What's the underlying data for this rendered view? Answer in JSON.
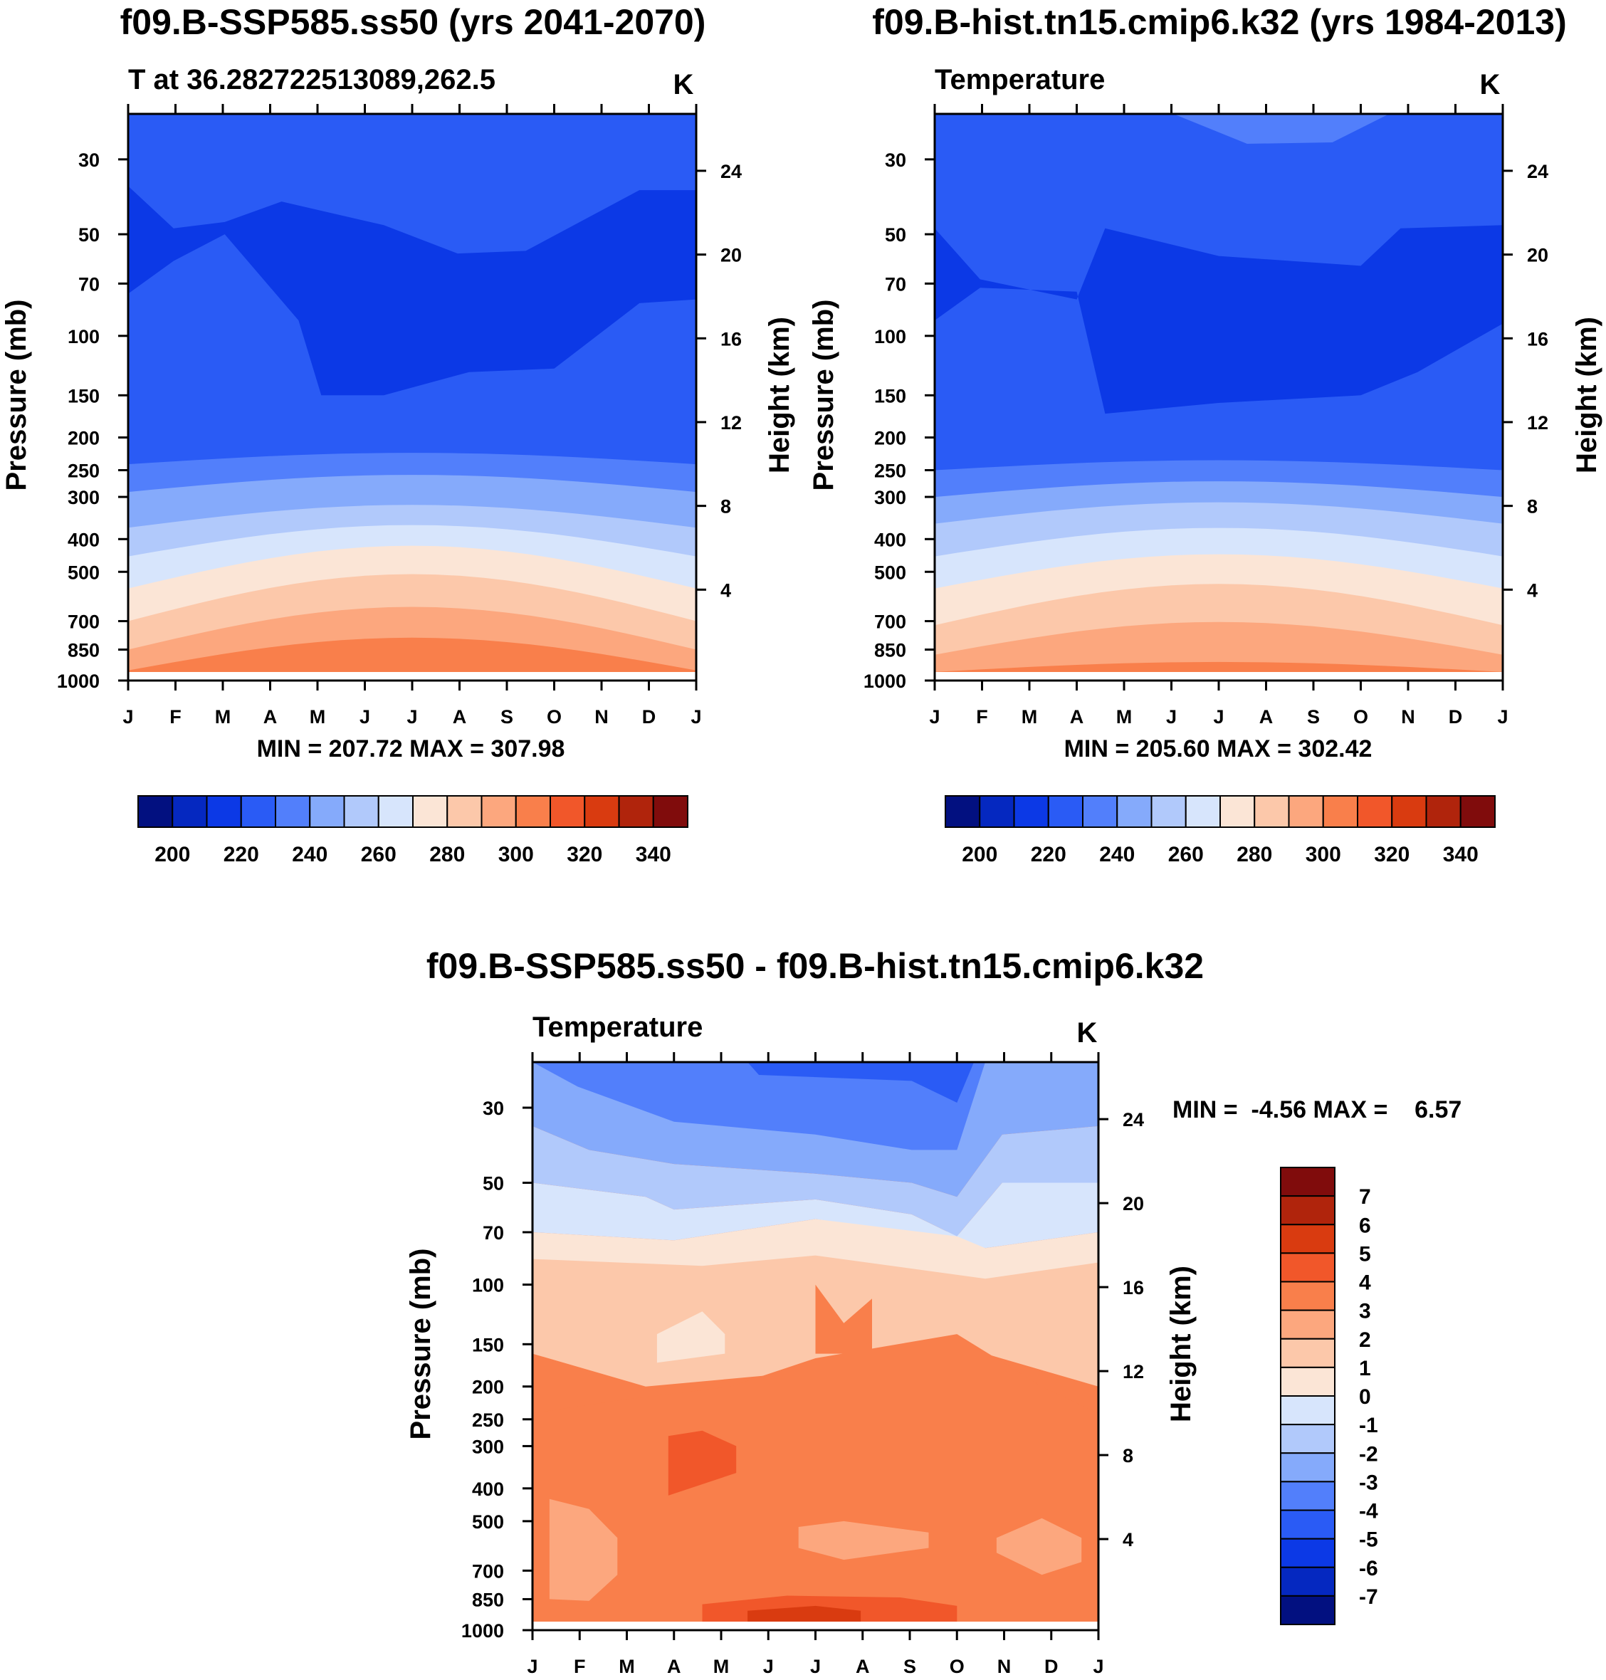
{
  "chart_data": [
    {
      "type": "contour",
      "title": "f09.B-SSP585.ss50 (yrs 2041-2070)",
      "subtitle": "T at 36.282722513089,262.5",
      "units": "K",
      "ylabel": "Pressure (mb)",
      "ylabel_right": "Height (km)",
      "x_ticks": [
        "J",
        "F",
        "M",
        "A",
        "M",
        "J",
        "J",
        "A",
        "S",
        "O",
        "N",
        "D",
        "J"
      ],
      "y_ticks": [
        "30",
        "50",
        "70",
        "100",
        "150",
        "200",
        "250",
        "300",
        "400",
        "500",
        "700",
        "850",
        "1000"
      ],
      "y_ticks_right": [
        "24",
        "20",
        "16",
        "12",
        "8",
        "4"
      ],
      "min_max": "MIN = 207.72 MAX = 307.98",
      "colorbar_labels": [
        "200",
        "220",
        "240",
        "260",
        "280",
        "300",
        "320",
        "340"
      ],
      "colorbar_levels": [
        200,
        210,
        220,
        230,
        240,
        250,
        260,
        270,
        280,
        290,
        300,
        310,
        320,
        330,
        340
      ],
      "zones": [
        {
          "p": 30,
          "value": "210-220"
        },
        {
          "p": 70,
          "value": "200-210"
        },
        {
          "p": 200,
          "value": "210-220"
        },
        {
          "p": 300,
          "value": "220-230"
        },
        {
          "p": 500,
          "value": "250-260"
        },
        {
          "p": 850,
          "value": "280-300"
        },
        {
          "p": 1000,
          "value": "300-310"
        }
      ]
    },
    {
      "type": "contour",
      "title": "f09.B-hist.tn15.cmip6.k32 (yrs 1984-2013)",
      "subtitle": "Temperature",
      "units": "K",
      "ylabel": "Pressure (mb)",
      "ylabel_right": "Height (km)",
      "x_ticks": [
        "J",
        "F",
        "M",
        "A",
        "M",
        "J",
        "J",
        "A",
        "S",
        "O",
        "N",
        "D",
        "J"
      ],
      "y_ticks": [
        "30",
        "50",
        "70",
        "100",
        "150",
        "200",
        "250",
        "300",
        "400",
        "500",
        "700",
        "850",
        "1000"
      ],
      "y_ticks_right": [
        "24",
        "20",
        "16",
        "12",
        "8",
        "4"
      ],
      "min_max": "MIN = 205.60 MAX = 302.42",
      "colorbar_labels": [
        "200",
        "220",
        "240",
        "260",
        "280",
        "300",
        "320",
        "340"
      ],
      "colorbar_levels": [
        200,
        210,
        220,
        230,
        240,
        250,
        260,
        270,
        280,
        290,
        300,
        310,
        320,
        330,
        340
      ]
    },
    {
      "type": "contour",
      "title": "f09.B-SSP585.ss50 - f09.B-hist.tn15.cmip6.k32",
      "subtitle": "Temperature",
      "units": "K",
      "ylabel": "Pressure (mb)",
      "ylabel_right": "Height (km)",
      "x_ticks": [
        "J",
        "F",
        "M",
        "A",
        "M",
        "J",
        "J",
        "A",
        "S",
        "O",
        "N",
        "D",
        "J"
      ],
      "y_ticks": [
        "30",
        "50",
        "70",
        "100",
        "150",
        "200",
        "250",
        "300",
        "400",
        "500",
        "700",
        "850",
        "1000"
      ],
      "y_ticks_right": [
        "24",
        "20",
        "16",
        "12",
        "8",
        "4"
      ],
      "min_max": "MIN =  -4.56 MAX =    6.57",
      "colorbar_labels": [
        "7",
        "6",
        "5",
        "4",
        "3",
        "2",
        "1",
        "0",
        "-1",
        "-2",
        "-3",
        "-4",
        "-5",
        "-6",
        "-7"
      ],
      "colorbar_levels": [
        -7,
        -6,
        -5,
        -4,
        -3,
        -2,
        -1,
        0,
        1,
        2,
        3,
        4,
        5,
        6,
        7
      ]
    }
  ],
  "colors": {
    "warm": [
      "#fbe5d6",
      "#fcc8aa",
      "#fca77e",
      "#f97f4b",
      "#f1572a",
      "#d93b10",
      "#b0240c",
      "#800c0c"
    ],
    "cool": [
      "#d7e5fc",
      "#b1c9fb",
      "#85aafb",
      "#527ffb",
      "#2a5bf5",
      "#0c39e6",
      "#0528c0",
      "#021080"
    ]
  }
}
